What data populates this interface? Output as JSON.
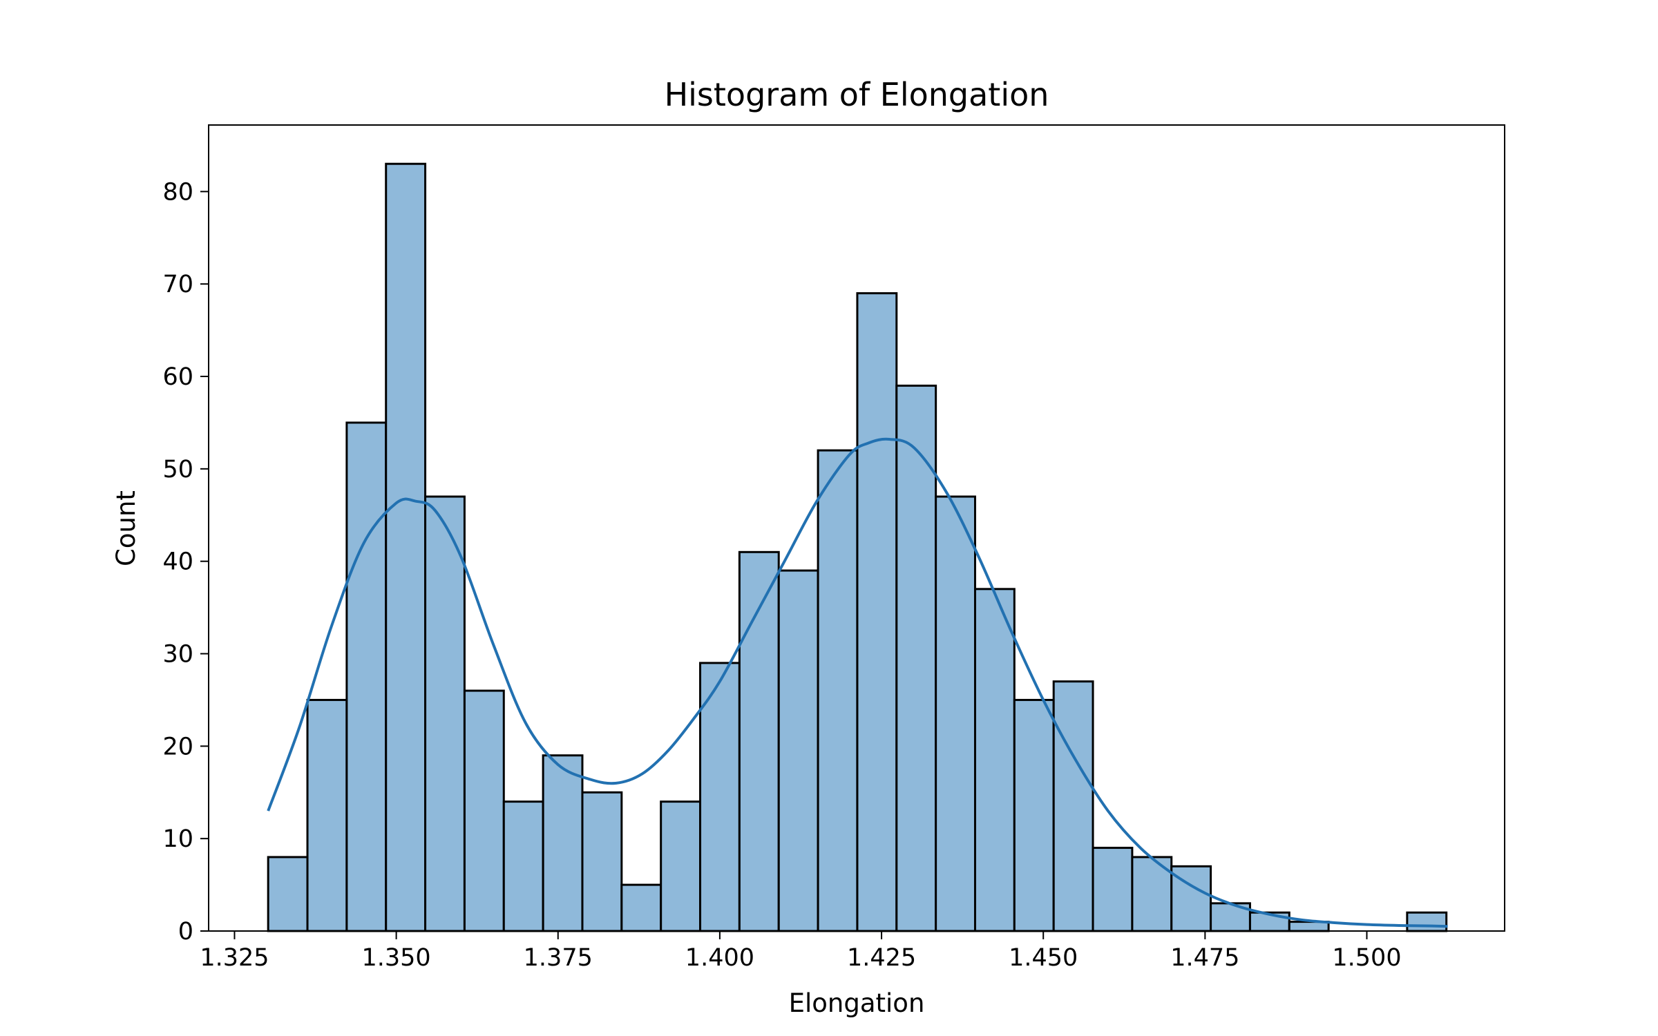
{
  "chart_data": {
    "type": "bar",
    "title": "Histogram of Elongation",
    "xlabel": "Elongation",
    "ylabel": "Count",
    "xlim": [
      1.321,
      1.5213
    ],
    "ylim": [
      0,
      87.2
    ],
    "xticks": [
      1.325,
      1.35,
      1.375,
      1.4,
      1.425,
      1.45,
      1.475,
      1.5
    ],
    "xtick_labels": [
      "1.325",
      "1.350",
      "1.375",
      "1.400",
      "1.425",
      "1.450",
      "1.475",
      "1.500"
    ],
    "yticks": [
      0,
      10,
      20,
      30,
      40,
      50,
      60,
      70,
      80
    ],
    "ytick_labels": [
      "0",
      "10",
      "20",
      "30",
      "40",
      "50",
      "60",
      "70",
      "80"
    ],
    "bin_start": 1.3302,
    "bin_width": 0.00607,
    "counts": [
      8,
      25,
      55,
      83,
      47,
      26,
      14,
      19,
      15,
      5,
      14,
      29,
      41,
      39,
      52,
      69,
      59,
      47,
      37,
      25,
      27,
      9,
      8,
      7,
      3,
      2,
      1,
      0,
      0,
      2
    ],
    "bar_color": "#8fb9da",
    "edge_color": "#000000",
    "kde": {
      "color": "#2271b1",
      "x": [
        1.3302,
        1.335,
        1.34,
        1.345,
        1.35,
        1.353,
        1.356,
        1.36,
        1.365,
        1.37,
        1.375,
        1.38,
        1.384,
        1.388,
        1.392,
        1.396,
        1.4,
        1.405,
        1.41,
        1.415,
        1.42,
        1.423,
        1.4262,
        1.43,
        1.435,
        1.44,
        1.445,
        1.45,
        1.455,
        1.46,
        1.465,
        1.47,
        1.475,
        1.48,
        1.485,
        1.49,
        1.495,
        1.5,
        1.505,
        1.51,
        1.5125
      ],
      "y": [
        13,
        22,
        33,
        42,
        46.3,
        46.5,
        45.5,
        40.5,
        31,
        22.5,
        18,
        16.4,
        16,
        17,
        19.5,
        23,
        27,
        33.5,
        40,
        46.5,
        51.5,
        52.8,
        53.2,
        52.3,
        47.5,
        40.5,
        32.5,
        25,
        18.5,
        13,
        9,
        6.2,
        4.1,
        2.7,
        1.8,
        1.2,
        0.9,
        0.7,
        0.6,
        0.55,
        0.5
      ]
    }
  }
}
